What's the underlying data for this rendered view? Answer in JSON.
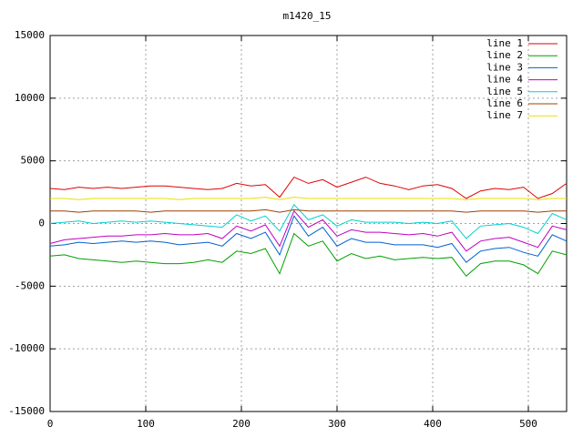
{
  "chart_data": {
    "type": "line",
    "title": "m1420_15",
    "x": [
      0,
      15,
      30,
      45,
      60,
      75,
      90,
      105,
      120,
      135,
      150,
      165,
      180,
      195,
      210,
      225,
      240,
      255,
      270,
      285,
      300,
      315,
      330,
      345,
      360,
      375,
      390,
      405,
      420,
      435,
      450,
      465,
      480,
      495,
      510,
      525,
      540
    ],
    "xlim": [
      0,
      540
    ],
    "xticks": [
      0,
      100,
      200,
      300,
      400,
      500
    ],
    "ylim": [
      -15000,
      15000
    ],
    "yticks": [
      -15000,
      -10000,
      -5000,
      0,
      5000,
      10000,
      15000
    ],
    "grid": true,
    "legend": "top-right",
    "series": [
      {
        "name": "line 1",
        "color": "#e00000",
        "values": [
          2800,
          2700,
          2900,
          2800,
          2900,
          2800,
          2900,
          3000,
          3000,
          2900,
          2800,
          2700,
          2800,
          3200,
          3000,
          3100,
          2100,
          3700,
          3200,
          3500,
          2900,
          3300,
          3700,
          3200,
          3000,
          2700,
          3000,
          3100,
          2800,
          2000,
          2600,
          2800,
          2700,
          2900,
          2000,
          2400,
          3200
        ]
      },
      {
        "name": "line 2",
        "color": "#00a000",
        "values": [
          -2600,
          -2500,
          -2800,
          -2900,
          -3000,
          -3100,
          -3000,
          -3100,
          -3200,
          -3200,
          -3100,
          -2900,
          -3100,
          -2200,
          -2400,
          -2000,
          -4000,
          -800,
          -1800,
          -1400,
          -3000,
          -2400,
          -2800,
          -2600,
          -2900,
          -2800,
          -2700,
          -2800,
          -2700,
          -4200,
          -3200,
          -3000,
          -3000,
          -3300,
          -4000,
          -2200,
          -2500
        ]
      },
      {
        "name": "line 3",
        "color": "#0060d0",
        "values": [
          -1800,
          -1700,
          -1500,
          -1600,
          -1500,
          -1400,
          -1500,
          -1400,
          -1500,
          -1700,
          -1600,
          -1500,
          -1800,
          -800,
          -1200,
          -700,
          -2500,
          600,
          -1000,
          -300,
          -1800,
          -1200,
          -1500,
          -1500,
          -1700,
          -1700,
          -1700,
          -1900,
          -1600,
          -3100,
          -2200,
          -2000,
          -1900,
          -2300,
          -2600,
          -900,
          -1400
        ]
      },
      {
        "name": "line 4",
        "color": "#c000c0",
        "values": [
          -1600,
          -1300,
          -1200,
          -1100,
          -1000,
          -1000,
          -900,
          -900,
          -800,
          -900,
          -900,
          -800,
          -1200,
          -200,
          -600,
          -100,
          -1800,
          1000,
          -300,
          300,
          -1000,
          -500,
          -700,
          -700,
          -800,
          -900,
          -800,
          -1000,
          -700,
          -2200,
          -1400,
          -1200,
          -1100,
          -1500,
          -1900,
          -200,
          -500
        ]
      },
      {
        "name": "line 5",
        "color": "#00d0d0",
        "values": [
          0,
          100,
          200,
          0,
          100,
          200,
          100,
          200,
          100,
          0,
          -100,
          -200,
          -300,
          700,
          200,
          600,
          -600,
          1500,
          300,
          700,
          -200,
          300,
          100,
          100,
          100,
          0,
          100,
          0,
          200,
          -1200,
          -200,
          -100,
          0,
          -300,
          -800,
          800,
          300
        ]
      },
      {
        "name": "line 6",
        "color": "#a04000",
        "values": [
          1000,
          1000,
          900,
          1000,
          1000,
          1000,
          1000,
          900,
          1000,
          1000,
          1000,
          1000,
          1000,
          1000,
          1000,
          1100,
          900,
          1100,
          1000,
          1000,
          1000,
          1000,
          1000,
          1000,
          1000,
          1000,
          1000,
          1000,
          1000,
          900,
          1000,
          1000,
          1000,
          1000,
          900,
          1000,
          1000
        ]
      },
      {
        "name": "line 7",
        "color": "#e8e000",
        "values": [
          2000,
          2000,
          1900,
          2000,
          2000,
          2000,
          2000,
          2000,
          2000,
          1900,
          2000,
          2000,
          2000,
          2000,
          2000,
          2100,
          1900,
          2100,
          2000,
          2000,
          2000,
          2000,
          2000,
          2000,
          2000,
          2000,
          2000,
          2000,
          2000,
          1900,
          2000,
          2000,
          2000,
          2000,
          1900,
          2000,
          2000
        ]
      }
    ]
  }
}
